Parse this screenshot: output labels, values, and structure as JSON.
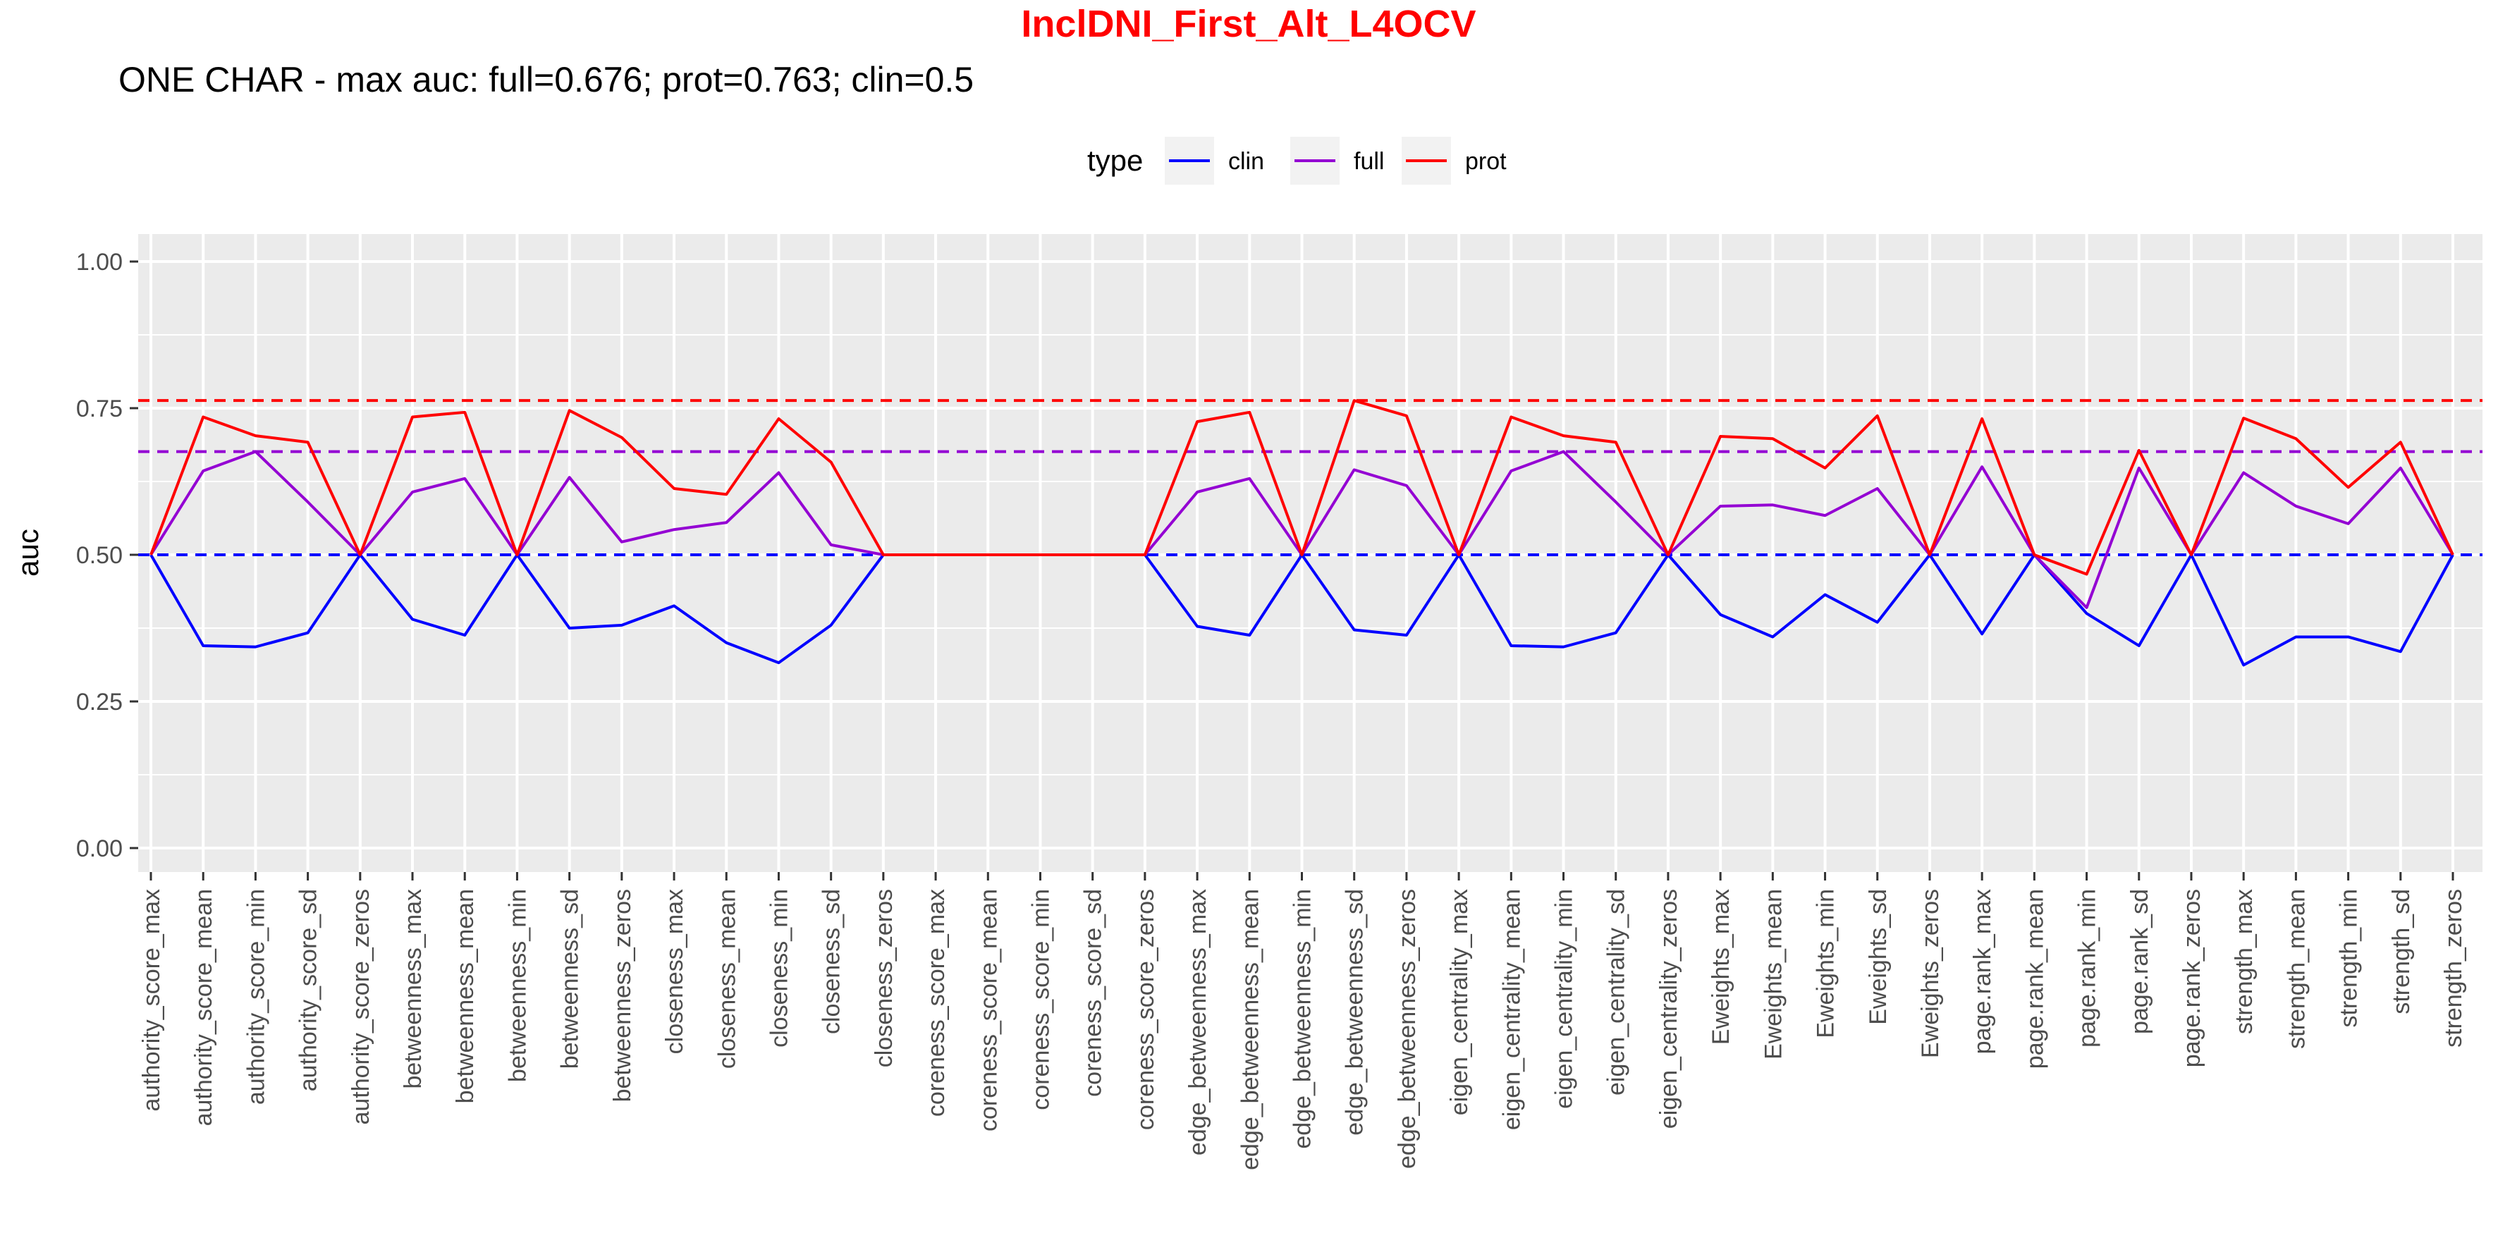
{
  "chart_data": {
    "type": "line",
    "title": "InclDNI_First_Alt_L4OCV",
    "subtitle": "ONE CHAR - max auc: full=0.676; prot=0.763; clin=0.5",
    "ylabel": "auc",
    "ylim": [
      0.0,
      1.0
    ],
    "yticks": [
      "0.00",
      "0.25",
      "0.50",
      "0.75",
      "1.00"
    ],
    "grid": true,
    "legend": {
      "title": "type",
      "position": "top",
      "entries": [
        "clin",
        "full",
        "prot"
      ]
    },
    "categories": [
      "authority_score_max",
      "authority_score_mean",
      "authority_score_min",
      "authority_score_sd",
      "authority_score_zeros",
      "betweenness_max",
      "betweenness_mean",
      "betweenness_min",
      "betweenness_sd",
      "betweenness_zeros",
      "closeness_max",
      "closeness_mean",
      "closeness_min",
      "closeness_sd",
      "closeness_zeros",
      "coreness_score_max",
      "coreness_score_mean",
      "coreness_score_min",
      "coreness_score_sd",
      "coreness_score_zeros",
      "edge_betweenness_max",
      "edge_betweenness_mean",
      "edge_betweenness_min",
      "edge_betweenness_sd",
      "edge_betweenness_zeros",
      "eigen_centrality_max",
      "eigen_centrality_mean",
      "eigen_centrality_min",
      "eigen_centrality_sd",
      "eigen_centrality_zeros",
      "Eweights_max",
      "Eweights_mean",
      "Eweights_min",
      "Eweights_sd",
      "Eweights_zeros",
      "page.rank_max",
      "page.rank_mean",
      "page.rank_min",
      "page.rank_sd",
      "page.rank_zeros",
      "strength_max",
      "strength_mean",
      "strength_min",
      "strength_sd",
      "strength_zeros"
    ],
    "series": [
      {
        "name": "clin",
        "color": "#0000FF",
        "max": 0.5,
        "values": [
          0.5,
          0.345,
          0.343,
          0.367,
          0.5,
          0.39,
          0.363,
          0.5,
          0.375,
          0.38,
          0.413,
          0.35,
          0.316,
          0.38,
          0.5,
          0.5,
          0.5,
          0.5,
          0.5,
          0.5,
          0.378,
          0.363,
          0.5,
          0.372,
          0.363,
          0.5,
          0.345,
          0.343,
          0.367,
          0.5,
          0.398,
          0.36,
          0.432,
          0.385,
          0.5,
          0.365,
          0.5,
          0.4,
          0.345,
          0.5,
          0.312,
          0.36,
          0.36,
          0.335,
          0.5
        ]
      },
      {
        "name": "full",
        "color": "#9400D3",
        "max": 0.676,
        "values": [
          0.5,
          0.643,
          0.676,
          0.59,
          0.5,
          0.607,
          0.63,
          0.5,
          0.632,
          0.522,
          0.543,
          0.555,
          0.64,
          0.517,
          0.5,
          0.5,
          0.5,
          0.5,
          0.5,
          0.5,
          0.607,
          0.63,
          0.5,
          0.645,
          0.618,
          0.5,
          0.643,
          0.676,
          0.59,
          0.5,
          0.583,
          0.585,
          0.567,
          0.613,
          0.5,
          0.65,
          0.5,
          0.41,
          0.648,
          0.5,
          0.64,
          0.583,
          0.553,
          0.648,
          0.5
        ]
      },
      {
        "name": "prot",
        "color": "#FF0000",
        "max": 0.763,
        "values": [
          0.5,
          0.735,
          0.703,
          0.692,
          0.5,
          0.735,
          0.743,
          0.5,
          0.746,
          0.7,
          0.613,
          0.603,
          0.732,
          0.658,
          0.5,
          0.5,
          0.5,
          0.5,
          0.5,
          0.5,
          0.727,
          0.743,
          0.5,
          0.763,
          0.737,
          0.5,
          0.735,
          0.703,
          0.692,
          0.5,
          0.702,
          0.698,
          0.648,
          0.737,
          0.5,
          0.732,
          0.5,
          0.467,
          0.678,
          0.5,
          0.733,
          0.698,
          0.615,
          0.692,
          0.5
        ]
      }
    ]
  }
}
